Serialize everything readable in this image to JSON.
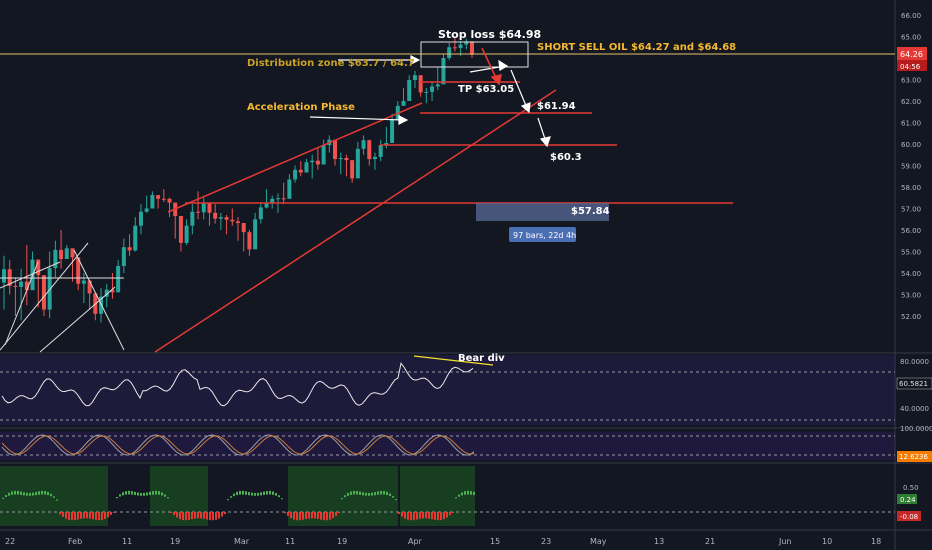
{
  "chart_data": {
    "type": "candlestick",
    "symbol_note": "Oil",
    "price_axis": {
      "ticks": [
        "66.00",
        "65.00",
        "64.00",
        "63.00",
        "62.00",
        "61.00",
        "60.00",
        "59.00",
        "58.00",
        "57.00",
        "56.00",
        "55.00",
        "54.00",
        "53.00",
        "52.00"
      ],
      "range": [
        51.6,
        66.3
      ]
    },
    "last_price_label": "64.26",
    "countdown_label": "04:56",
    "date_axis": {
      "ticks": [
        "22",
        "Feb",
        "11",
        "19",
        "Mar",
        "11",
        "19",
        "Apr",
        "15",
        "23",
        "May",
        "13",
        "21",
        "Jun",
        "10",
        "18"
      ]
    },
    "annotations": {
      "stop_loss": "Stop loss $64.98",
      "short_sell": "SHORT SELL OIL $64.27 and $64.68",
      "distribution_zone": "Distribution zone $63.7 / 64.7",
      "take_profit": "TP $63.05",
      "acceleration": "Acceleration Phase",
      "target_1": "$61.94",
      "target_2": "$60.3",
      "target_3": "$57.84",
      "measure": "97 bars, 22d 4h",
      "bear_div": "Bear div"
    },
    "horizontal_levels": [
      64.27,
      61.94,
      60.3,
      57.84
    ],
    "rsi": {
      "ticks": [
        "80.0000",
        "40.0000"
      ],
      "value_label": "60.5821"
    },
    "stoch": {
      "ticks": [
        "100.0000"
      ],
      "value_label": "12.6236"
    },
    "histogram": {
      "ticks": [
        "0.50",
        "0.24",
        "-0.08"
      ],
      "up_label": "0.24",
      "down_label": "-0.08"
    },
    "candles": [
      [
        52.3,
        54.8
      ],
      [
        53.0,
        54.6
      ],
      [
        52.0,
        53.8
      ],
      [
        51.8,
        54.2
      ],
      [
        52.5,
        55.3
      ],
      [
        53.5,
        55.0
      ],
      [
        52.4,
        54.4
      ],
      [
        52.0,
        53.2
      ],
      [
        51.9,
        55.0
      ],
      [
        53.8,
        55.5
      ],
      [
        54.2,
        56.0
      ],
      [
        54.7,
        55.3
      ],
      [
        53.6,
        55.1
      ],
      [
        53.2,
        54.4
      ],
      [
        52.6,
        54.0
      ],
      [
        52.3,
        53.3
      ],
      [
        51.8,
        53.0
      ],
      [
        51.7,
        53.3
      ],
      [
        52.4,
        53.5
      ],
      [
        52.8,
        54.0
      ],
      [
        53.5,
        54.6
      ],
      [
        54.0,
        55.6
      ],
      [
        54.8,
        55.8
      ],
      [
        55.0,
        56.6
      ],
      [
        55.8,
        57.2
      ],
      [
        56.8,
        57.6
      ],
      [
        57.1,
        57.8
      ],
      [
        57.0,
        57.6
      ],
      [
        57.3,
        57.9
      ],
      [
        56.6,
        57.5
      ],
      [
        55.6,
        57.0
      ],
      [
        55.0,
        56.6
      ],
      [
        55.3,
        56.5
      ],
      [
        55.8,
        57.2
      ],
      [
        56.5,
        57.8
      ],
      [
        56.5,
        57.5
      ],
      [
        56.2,
        57.0
      ],
      [
        56.3,
        57.2
      ],
      [
        56.0,
        56.8
      ],
      [
        55.8,
        56.7
      ],
      [
        56.2,
        57.0
      ],
      [
        55.5,
        56.6
      ],
      [
        55.0,
        56.2
      ],
      [
        54.8,
        56.0
      ],
      [
        55.6,
        56.8
      ],
      [
        56.3,
        57.3
      ],
      [
        57.0,
        57.9
      ],
      [
        57.0,
        57.6
      ],
      [
        56.8,
        57.7
      ],
      [
        57.2,
        58.2
      ],
      [
        57.6,
        58.6
      ],
      [
        58.2,
        59.0
      ],
      [
        58.5,
        59.2
      ],
      [
        58.7,
        59.3
      ],
      [
        58.4,
        59.5
      ],
      [
        58.8,
        59.8
      ],
      [
        59.2,
        60.2
      ],
      [
        59.6,
        60.4
      ],
      [
        59.0,
        60.2
      ],
      [
        58.6,
        59.6
      ],
      [
        58.5,
        59.5
      ],
      [
        58.2,
        59.0
      ],
      [
        58.8,
        60.1
      ],
      [
        59.5,
        60.4
      ],
      [
        59.0,
        60.2
      ],
      [
        58.8,
        59.6
      ],
      [
        59.2,
        60.2
      ],
      [
        59.8,
        60.8
      ],
      [
        60.3,
        61.4
      ],
      [
        61.1,
        62.0
      ],
      [
        61.8,
        62.6
      ],
      [
        62.3,
        63.2
      ],
      [
        62.6,
        63.4
      ],
      [
        62.2,
        63.0
      ],
      [
        61.9,
        62.6
      ],
      [
        62.0,
        62.9
      ],
      [
        62.5,
        63.6
      ],
      [
        63.4,
        64.2
      ],
      [
        63.9,
        64.7
      ],
      [
        64.3,
        64.98
      ],
      [
        64.1,
        64.8
      ],
      [
        64.4,
        64.9
      ],
      [
        64.0,
        64.6
      ]
    ]
  }
}
